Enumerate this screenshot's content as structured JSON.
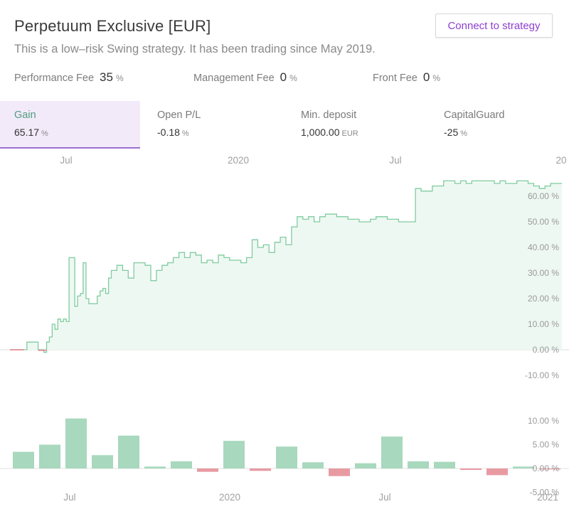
{
  "header": {
    "title": "Perpetuum Exclusive [EUR]",
    "subtitle": "This is a low–risk Swing strategy. It has been trading since May 2019.",
    "connect_label": "Connect to strategy"
  },
  "fees": [
    {
      "label": "Performance Fee",
      "value": "35",
      "unit": "%"
    },
    {
      "label": "Management Fee",
      "value": "0",
      "unit": "%"
    },
    {
      "label": "Front Fee",
      "value": "0",
      "unit": "%"
    }
  ],
  "stats": [
    {
      "label": "Gain",
      "value": "65.17",
      "unit": "%"
    },
    {
      "label": "Open P/L",
      "value": "-0.18",
      "unit": "%"
    },
    {
      "label": "Min. deposit",
      "value": "1,000.00",
      "unit": "EUR"
    },
    {
      "label": "CapitalGuard",
      "value": "-25",
      "unit": "%"
    }
  ],
  "colors": {
    "accent": "#8e3ed1",
    "positive_line": "#7fcca0",
    "positive_fill": "#eef8f2",
    "positive_bar": "#a8d8bd",
    "negative": "#e37f8a",
    "negative_bar": "#e89aa2",
    "active_tab_bg": "#f2eaf9"
  },
  "chart_data": [
    {
      "type": "area",
      "x_tick_labels": [
        "Jul",
        "2020",
        "Jul",
        "20"
      ],
      "y_tick_labels": [
        "-10.00 %",
        "0.00 %",
        "10.00 %",
        "20.00 %",
        "30.00 %",
        "40.00 %",
        "50.00 %",
        "60.00 %"
      ],
      "ylim": [
        -12,
        70
      ],
      "series": [
        {
          "x": [
            0,
            5,
            6,
            8,
            10,
            12,
            13,
            14,
            15,
            16,
            17,
            18,
            19,
            20,
            21,
            22,
            23,
            24,
            25,
            26,
            27,
            28,
            29,
            30,
            31,
            32,
            33,
            34,
            35,
            36,
            38,
            40,
            42,
            44,
            46,
            48,
            50,
            52,
            54,
            56,
            58,
            60,
            62,
            64,
            66,
            68,
            70,
            72,
            74,
            76,
            78,
            80,
            82,
            84,
            86,
            88,
            90,
            92,
            94,
            96,
            98,
            100,
            102,
            104,
            106,
            108,
            110,
            112,
            114,
            116,
            118,
            120,
            122,
            124,
            126,
            128,
            130,
            132,
            134,
            136,
            138,
            140,
            142,
            144,
            146,
            148,
            150,
            152,
            154,
            156,
            158,
            160,
            162,
            164,
            166,
            168,
            170,
            172,
            174,
            176,
            178,
            180,
            182,
            184,
            186,
            188,
            190,
            192,
            194,
            196
          ],
          "y": [
            0,
            0,
            3,
            3,
            0,
            -1,
            3,
            5,
            10,
            8,
            12,
            11,
            12,
            11,
            36,
            36,
            17,
            21,
            22,
            34,
            20,
            18,
            18,
            18,
            21,
            23,
            24,
            22,
            28,
            31,
            33,
            31,
            28,
            34,
            34,
            33,
            27,
            31,
            33,
            34,
            36,
            38,
            36,
            38,
            37,
            34,
            35,
            34,
            37,
            36,
            35,
            35,
            34,
            36,
            43,
            40,
            41,
            38,
            42,
            44,
            41,
            48,
            52,
            51,
            52,
            50,
            52,
            53,
            53,
            52,
            52,
            51,
            51,
            50,
            50,
            51,
            52,
            52,
            51,
            51,
            50,
            50,
            50,
            63,
            62,
            62,
            64,
            64,
            66,
            66,
            65,
            66,
            65,
            66,
            66,
            66,
            66,
            65,
            66,
            65,
            65,
            66,
            66,
            65,
            64,
            63,
            64,
            65,
            65,
            65
          ]
        }
      ]
    },
    {
      "type": "bar",
      "x_tick_labels": [
        "Jul",
        "2020",
        "Jul",
        "2021"
      ],
      "y_tick_labels": [
        "-5.00 %",
        "0.00 %",
        "5.00 %",
        "10.00 %"
      ],
      "ylim": [
        -5,
        12
      ],
      "values": [
        3.5,
        5.0,
        10.5,
        2.8,
        6.9,
        0.4,
        1.5,
        -0.7,
        5.8,
        -0.5,
        4.6,
        1.3,
        -1.6,
        1.1,
        6.7,
        1.5,
        1.4,
        -0.3,
        -1.4,
        0.4,
        -0.2
      ]
    }
  ]
}
